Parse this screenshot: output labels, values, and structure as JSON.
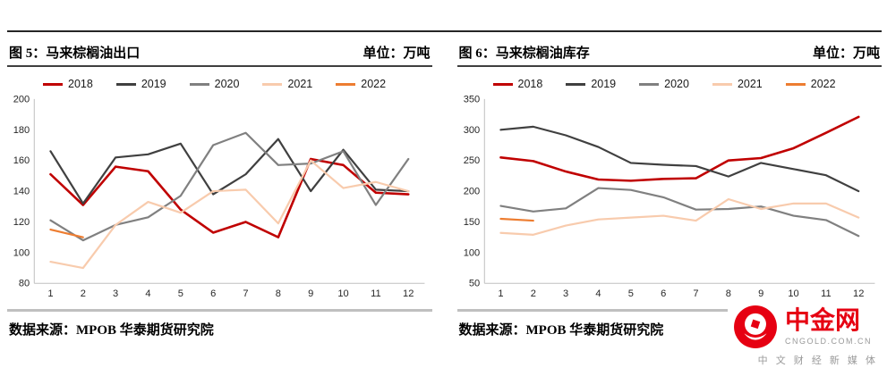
{
  "left_panel": {
    "title": "图 5：马来棕榈油出口",
    "unit": "单位：万吨",
    "source": "数据来源：MPOB  华泰期货研究院"
  },
  "right_panel": {
    "title": "图 6：马来棕榈油库存",
    "unit": "单位：万吨",
    "source": "数据来源：MPOB  华泰期货研究院"
  },
  "watermark": {
    "brand": "中金网",
    "domain": "CNGOLD.COM.CN",
    "tagline": "中 文 财 经 新 媒 体",
    "brand_color": "#e60012"
  },
  "chart_data": [
    {
      "type": "line",
      "title": "马来棕榈油出口",
      "unit": "万吨",
      "x": [
        1,
        2,
        3,
        4,
        5,
        6,
        7,
        8,
        9,
        10,
        11,
        12
      ],
      "xlabel": "",
      "ylabel": "",
      "ylim": [
        80,
        200
      ],
      "ytick_step": 20,
      "grid": false,
      "legend_position": "top",
      "series": [
        {
          "name": "2018",
          "color": "#c00000",
          "values": [
            151,
            131,
            156,
            153,
            128,
            113,
            120,
            110,
            161,
            157,
            139,
            138
          ]
        },
        {
          "name": "2019",
          "color": "#404040",
          "values": [
            166,
            132,
            162,
            164,
            171,
            138,
            151,
            174,
            140,
            167,
            141,
            140
          ]
        },
        {
          "name": "2020",
          "color": "#808080",
          "values": [
            121,
            108,
            118,
            123,
            137,
            170,
            178,
            157,
            158,
            166,
            131,
            161
          ]
        },
        {
          "name": "2021",
          "color": "#f8cbad",
          "values": [
            94,
            90,
            118,
            133,
            126,
            140,
            141,
            119,
            160,
            142,
            146,
            140
          ]
        },
        {
          "name": "2022",
          "color": "#ed7d31",
          "values": [
            115,
            110
          ]
        }
      ]
    },
    {
      "type": "line",
      "title": "马来棕榈油库存",
      "unit": "万吨",
      "x": [
        1,
        2,
        3,
        4,
        5,
        6,
        7,
        8,
        9,
        10,
        11,
        12
      ],
      "xlabel": "",
      "ylabel": "",
      "ylim": [
        50,
        350
      ],
      "ytick_step": 50,
      "grid": false,
      "legend_position": "top",
      "series": [
        {
          "name": "2018",
          "color": "#c00000",
          "values": [
            255,
            249,
            232,
            219,
            217,
            220,
            221,
            250,
            254,
            270,
            295,
            321
          ]
        },
        {
          "name": "2019",
          "color": "#404040",
          "values": [
            300,
            305,
            291,
            272,
            246,
            243,
            241,
            224,
            246,
            236,
            226,
            200
          ]
        },
        {
          "name": "2020",
          "color": "#808080",
          "values": [
            176,
            167,
            172,
            205,
            202,
            190,
            170,
            171,
            175,
            160,
            153,
            127
          ]
        },
        {
          "name": "2021",
          "color": "#f8cbad",
          "values": [
            132,
            129,
            144,
            154,
            157,
            160,
            152,
            187,
            171,
            180,
            180,
            157
          ]
        },
        {
          "name": "2022",
          "color": "#ed7d31",
          "values": [
            155,
            152
          ]
        }
      ]
    }
  ]
}
